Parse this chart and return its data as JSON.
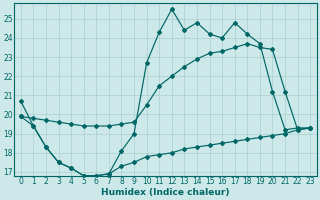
{
  "xlabel": "Humidex (Indice chaleur)",
  "bg_color": "#cce8e8",
  "grid_color": "#aacfcf",
  "line_color": "#006666",
  "x": [
    0,
    1,
    2,
    3,
    4,
    5,
    6,
    7,
    8,
    9,
    10,
    11,
    12,
    13,
    14,
    15,
    16,
    17,
    18,
    19,
    20,
    21,
    22,
    23
  ],
  "y_top": [
    20.7,
    19.4,
    18.3,
    17.5,
    17.2,
    16.8,
    16.8,
    16.9,
    18.1,
    19.0,
    22.7,
    24.3,
    25.5,
    24.4,
    24.8,
    24.2,
    24.0,
    24.8,
    24.2,
    23.7,
    21.2,
    19.2,
    19.3,
    19.3
  ],
  "y_mid": [
    19.9,
    19.8,
    19.7,
    19.6,
    19.5,
    19.4,
    19.4,
    19.4,
    19.5,
    19.6,
    20.5,
    21.5,
    22.0,
    22.5,
    22.9,
    23.2,
    23.3,
    23.5,
    23.7,
    23.5,
    23.4,
    21.2,
    19.2,
    19.3
  ],
  "y_bot": [
    19.9,
    19.4,
    18.3,
    17.5,
    17.2,
    16.8,
    16.8,
    16.9,
    17.3,
    17.5,
    17.8,
    17.9,
    18.0,
    18.2,
    18.3,
    18.4,
    18.5,
    18.6,
    18.7,
    18.8,
    18.9,
    19.0,
    19.2,
    19.3
  ],
  "ylim_lo": 16.8,
  "ylim_hi": 25.8,
  "yticks": [
    17,
    18,
    19,
    20,
    21,
    22,
    23,
    24,
    25
  ],
  "xlim_lo": -0.5,
  "xlim_hi": 23.5,
  "xticks": [
    0,
    1,
    2,
    3,
    4,
    5,
    6,
    7,
    8,
    9,
    10,
    11,
    12,
    13,
    14,
    15,
    16,
    17,
    18,
    19,
    20,
    21,
    22,
    23
  ],
  "tick_fontsize": 5.5,
  "xlabel_fontsize": 6.5,
  "figwidth": 3.2,
  "figheight": 2.0,
  "dpi": 100
}
